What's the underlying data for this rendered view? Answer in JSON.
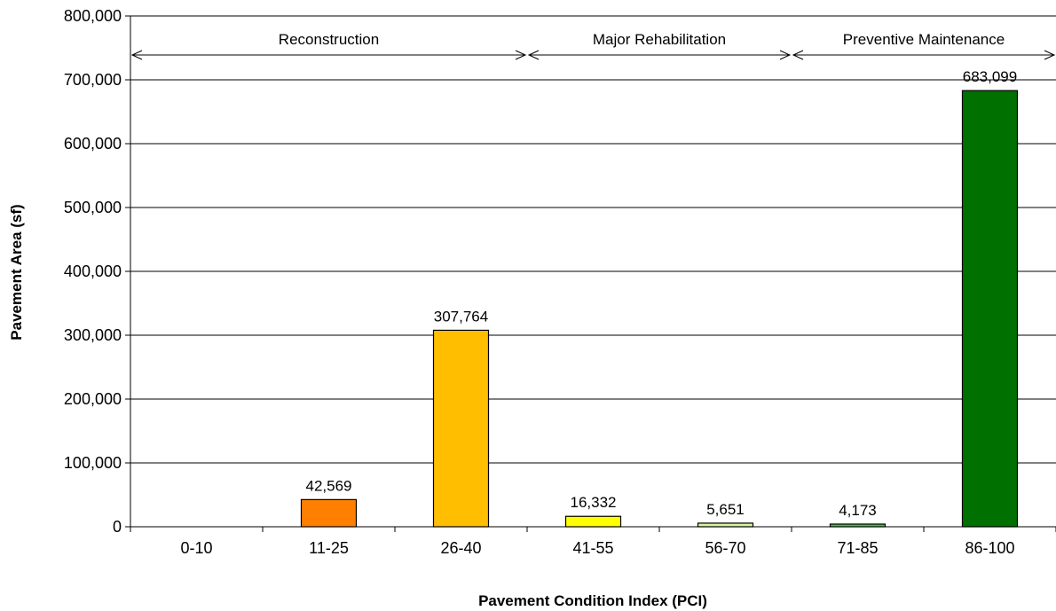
{
  "chart_data": {
    "type": "bar",
    "xlabel": "Pavement Condition Index (PCI)",
    "ylabel": "Pavement Area (sf)",
    "ylim": [
      0,
      800000
    ],
    "yticks": [
      0,
      100000,
      200000,
      300000,
      400000,
      500000,
      600000,
      700000,
      800000
    ],
    "ytick_labels": [
      "0",
      "100,000",
      "200,000",
      "300,000",
      "400,000",
      "500,000",
      "600,000",
      "700,000",
      "800,000"
    ],
    "grid": true,
    "categories": [
      "0-10",
      "11-25",
      "26-40",
      "41-55",
      "56-70",
      "71-85",
      "86-100"
    ],
    "values": [
      0,
      42569,
      307764,
      16332,
      5651,
      4173,
      683099
    ],
    "data_labels": [
      "",
      "42,569",
      "307,764",
      "16,332",
      "5,651",
      "4,173",
      "683,099"
    ],
    "colors": [
      "#c00000",
      "#ff7f00",
      "#ffbf00",
      "#ffff00",
      "#d9f5a0",
      "#4cbf4c",
      "#007000"
    ],
    "annotations": [
      {
        "text": "Reconstruction",
        "from_category": -0.5,
        "to_category": 2.5
      },
      {
        "text": "Major Rehabilitation",
        "from_category": 2.5,
        "to_category": 4.5
      },
      {
        "text": "Preventive Maintenance",
        "from_category": 4.5,
        "to_category": 6.5
      }
    ]
  }
}
